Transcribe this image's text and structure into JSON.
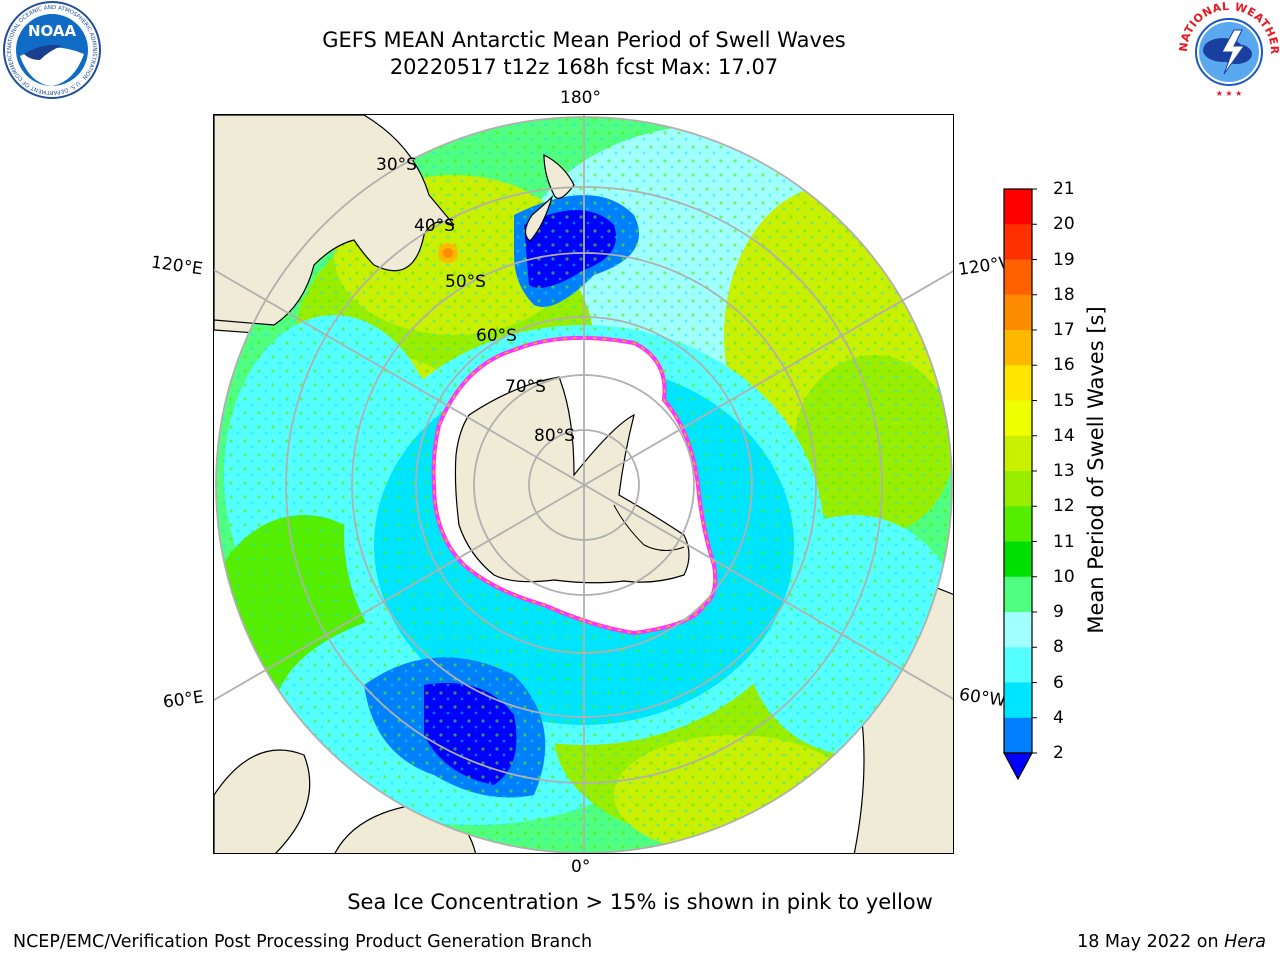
{
  "title": {
    "line1": "GEFS MEAN Antarctic Mean Period of Swell Waves",
    "line2": "20220517 t12z 168h fcst   Max: 17.07"
  },
  "logos": {
    "left": {
      "icon": "noaa-logo",
      "text": "NOAA"
    },
    "right": {
      "icon": "nws-logo",
      "text": "NATIONAL WEATHER SERVICE"
    }
  },
  "map": {
    "projection": "south-polar-stereographic",
    "longitude_labels": {
      "top": "180°",
      "bottom": "0°",
      "upper_left": "120°E",
      "upper_right": "120°W",
      "lower_left": "60°E",
      "lower_right": "60°W"
    },
    "latitude_labels": [
      "30°S",
      "40°S",
      "50°S",
      "60°S",
      "70°S",
      "80°S"
    ],
    "colors": {
      "land": "#efebd6",
      "sea_ice_interior": "#ffffff",
      "ice_edge": "#ff33ff",
      "ice_edge_inner": "#ffb800",
      "grid": "#b0b0b0"
    }
  },
  "colorbar": {
    "label": "Mean Period of Swell Waves [s]",
    "ticks": [
      "2",
      "4",
      "6",
      "8",
      "9",
      "10",
      "11",
      "12",
      "13",
      "14",
      "15",
      "16",
      "17",
      "18",
      "19",
      "20",
      "21"
    ],
    "colors": [
      "#0000ff",
      "#0080ff",
      "#00e5ff",
      "#55ffff",
      "#a0ffff",
      "#50ff80",
      "#00e000",
      "#55ee00",
      "#99ee00",
      "#c8f000",
      "#eeff00",
      "#ffe600",
      "#ffb800",
      "#ff8c00",
      "#ff6000",
      "#ff3000",
      "#ff0000"
    ],
    "extend": "min"
  },
  "ice_note": "Sea Ice Concentration > 15% is shown in pink to yellow",
  "footer": {
    "left": "NCEP/EMC/Verification Post Processing Product Generation Branch",
    "right_prefix": "18 May 2022 on ",
    "right_machine": "Hera"
  }
}
